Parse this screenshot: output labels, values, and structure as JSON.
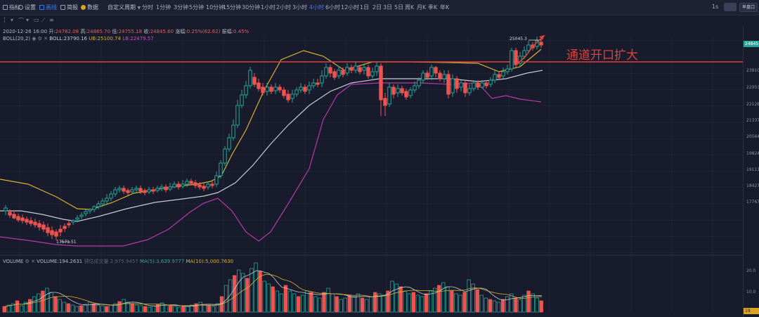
{
  "toolbar": {
    "items": [
      "指标",
      "设置",
      "画线",
      "简报",
      "数据"
    ],
    "custom_period": "自定义周期",
    "intervals": [
      "分时",
      "1分钟",
      "3分钟",
      "5分钟",
      "10分钟",
      "15分钟",
      "30分钟",
      "1小时",
      "2小时",
      "3小时",
      "4小时",
      "6小时",
      "12小时",
      "1日",
      "2日",
      "3日",
      "5日",
      "周K",
      "月K",
      "季K",
      "年K"
    ],
    "active_interval_index": 10,
    "right_interval": "1s",
    "right_button": "早盘口"
  },
  "info": {
    "datetime": "2020-12-26 16:00",
    "open_label": "开:",
    "open": "24782.08",
    "high_label": "高:",
    "high": "24865.70",
    "low_label": "低:",
    "low": "24755.18",
    "close_label": "收:",
    "close": "24845.60",
    "change_label": "涨幅:",
    "change": "0.25%(62.62)",
    "amp_label": "振幅:",
    "amp": "0.45%"
  },
  "boll": {
    "name": "BOLL(20,2)",
    "boll_label": "BOLL:",
    "boll": "23790.16",
    "ub_label": "UB:",
    "ub": "25100.74",
    "lb_label": "LB:",
    "lb": "22479.57"
  },
  "annotation": "通道开口扩大",
  "high_marker": "25045.3",
  "low_marker": "17571.51",
  "price_tag": "24845",
  "y_ticks": [
    "23810",
    "22953",
    "22128",
    "21337",
    "20564",
    "19824",
    "19111",
    "18427",
    "17767"
  ],
  "volume": {
    "label": "VOLUME",
    "value_label": "VOLUME:",
    "value": "194.2631",
    "hidden_label": "预估成交量 2,975.9457",
    "ma5_label": "MA(5):",
    "ma5": "3,639.9777",
    "ma10_label": "MA(10):",
    "ma10": "5,000.7630",
    "axis_top": "20.0",
    "axis_mid": "10.0",
    "tag": "19"
  },
  "colors": {
    "up": "#26a69a",
    "down": "#ef5350",
    "boll_mid": "#c9cad3",
    "boll_up": "#d9b232",
    "boll_low": "#b53ba8",
    "annotation": "#e0413c"
  },
  "chart_data": {
    "type": "candlestick",
    "interval": "4小时",
    "series": [
      {
        "name": "BOLL",
        "value": 23790.16
      },
      {
        "name": "UB",
        "value": 25100.74
      },
      {
        "name": "LB",
        "value": 22479.57
      }
    ],
    "ylim": [
      17571.51,
      25045.3
    ]
  }
}
